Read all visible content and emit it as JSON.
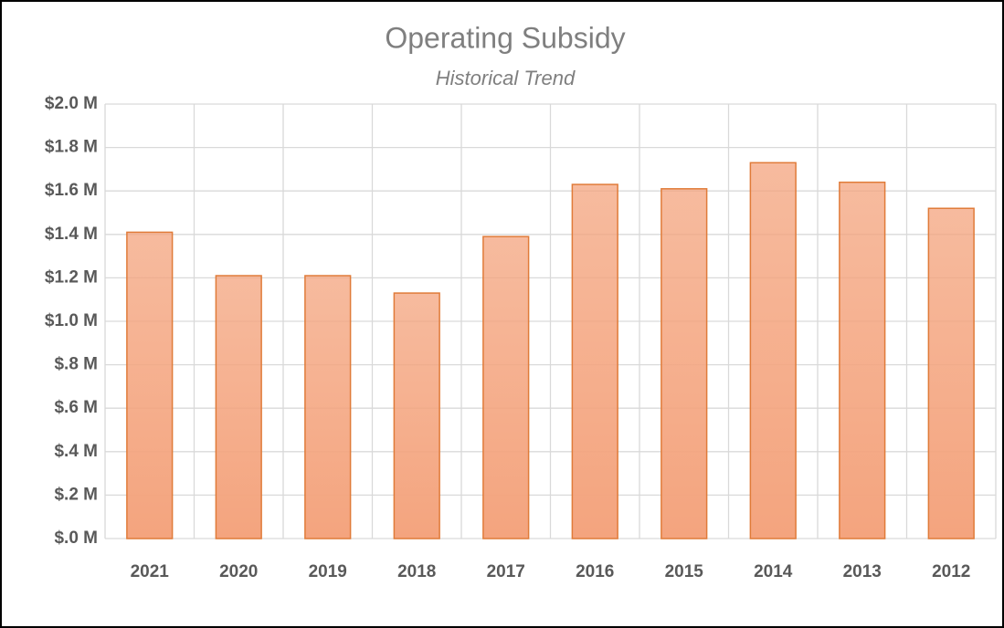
{
  "chart_data": {
    "type": "bar",
    "title": "Operating Subsidy",
    "subtitle": "Historical Trend",
    "categories": [
      "2021",
      "2020",
      "2019",
      "2018",
      "2017",
      "2016",
      "2015",
      "2014",
      "2013",
      "2012"
    ],
    "values": [
      1.41,
      1.21,
      1.21,
      1.13,
      1.39,
      1.63,
      1.61,
      1.73,
      1.64,
      1.52
    ],
    "color": "#f4a47e",
    "edge_color": "#e07b39",
    "ylim": [
      0,
      2.0
    ],
    "yticks": [
      {
        "value": 0,
        "label": "$.0 M"
      },
      {
        "value": 0.2,
        "label": "$.2 M"
      },
      {
        "value": 0.4,
        "label": "$.4 M"
      },
      {
        "value": 0.6,
        "label": "$.6 M"
      },
      {
        "value": 0.8,
        "label": "$.8 M"
      },
      {
        "value": 1.0,
        "label": "$1.0 M"
      },
      {
        "value": 1.2,
        "label": "$1.2 M"
      },
      {
        "value": 1.4,
        "label": "$1.4 M"
      },
      {
        "value": 1.6,
        "label": "$1.6 M"
      },
      {
        "value": 1.8,
        "label": "$1.8 M"
      },
      {
        "value": 2.0,
        "label": "$2.0 M"
      }
    ],
    "grid": true
  }
}
